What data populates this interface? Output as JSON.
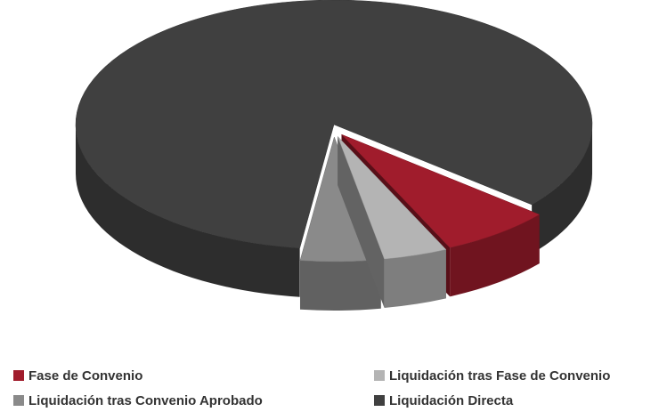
{
  "chart_data": {
    "type": "pie",
    "categories": [
      "Fase de Convenio",
      "Liquidación tras Fase de Convenio",
      "Liquidación tras Convenio Aprobado",
      "Liquidación Directa"
    ],
    "values": [
      7,
      4,
      5,
      84
    ],
    "colors": [
      "#a01c2c",
      "#b4b4b4",
      "#8a8a8a",
      "#404040"
    ],
    "legend": "bottom"
  }
}
